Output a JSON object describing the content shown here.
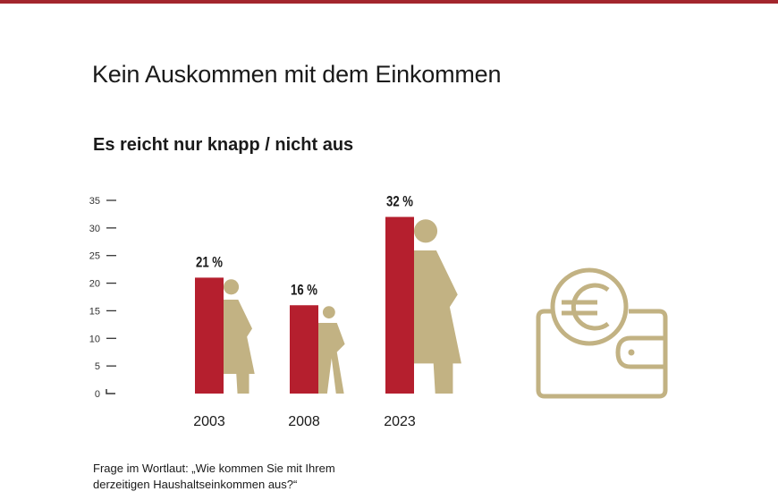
{
  "title": "Kein Auskommen mit dem Einkommen",
  "subtitle": "Es reicht nur knapp / nicht aus",
  "footnote": {
    "line1": "Frage im Wortlaut: „Wie kommen Sie mit Ihrem",
    "line2": "derzeitigen Haushaltseinkommen aus?“"
  },
  "colors": {
    "accent": "#a3262d",
    "bar": "#b51f2e",
    "figure": "#c2b283"
  },
  "icons": [
    "woman-figure-icon",
    "child-figure-icon",
    "wallet-euro-icon"
  ],
  "chart_data": {
    "type": "bar",
    "title": "Es reicht nur knapp / nicht aus",
    "categories": [
      "2003",
      "2008",
      "2023"
    ],
    "values": [
      21,
      16,
      32
    ],
    "data_labels": [
      "21 %",
      "16 %",
      "32 %"
    ],
    "unit": "%",
    "ylim": [
      0,
      35
    ],
    "yticks": [
      0,
      5,
      10,
      15,
      20,
      25,
      30,
      35
    ],
    "grid": false,
    "legend": "none"
  }
}
